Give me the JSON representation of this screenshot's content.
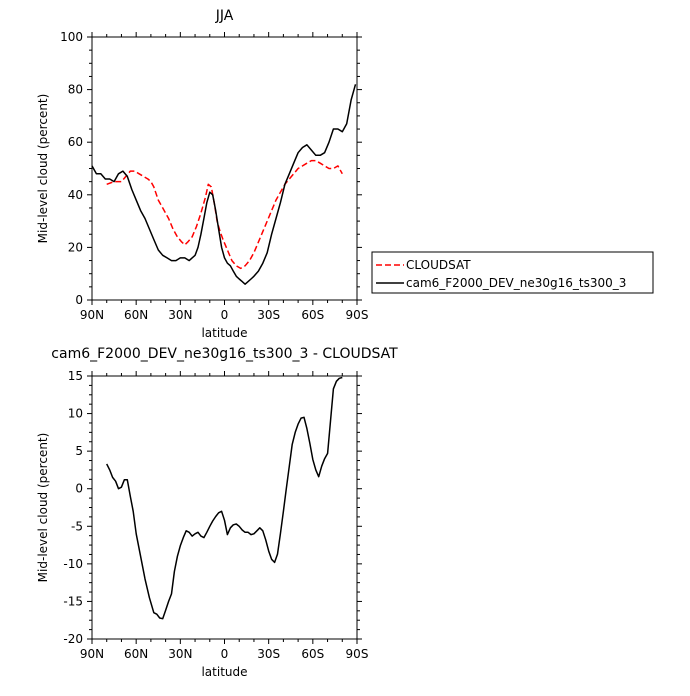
{
  "chart_data": [
    {
      "type": "line",
      "title": "JJA",
      "xlabel": "latitude",
      "ylabel": "Mid-level cloud (percent)",
      "xlim": [
        90,
        -90
      ],
      "ylim": [
        0,
        100
      ],
      "x_ticks": [
        90,
        60,
        30,
        0,
        -30,
        -60,
        -90
      ],
      "x_tick_labels": [
        "90N",
        "60N",
        "30N",
        "0",
        "30S",
        "60S",
        "90S"
      ],
      "y_ticks": [
        0,
        20,
        40,
        60,
        80,
        100
      ],
      "y_tick_labels": [
        "0",
        "20",
        "40",
        "60",
        "80",
        "100"
      ],
      "legend_position": "right",
      "series": [
        {
          "name": "CLOUDSAT",
          "color": "#ff0000",
          "dash": "dashed",
          "x": [
            80,
            75,
            70,
            67,
            64,
            61,
            58,
            55,
            52,
            50,
            48,
            45,
            42,
            38,
            35,
            32,
            29,
            27,
            25,
            22,
            19,
            16,
            13,
            11,
            9,
            7,
            5,
            3,
            1,
            -2,
            -5,
            -8,
            -11,
            -14,
            -17,
            -20,
            -23,
            -26,
            -29,
            -32,
            -35,
            -38,
            -41,
            -44,
            -47,
            -50,
            -53,
            -56,
            -59,
            -62,
            -65,
            -68,
            -71,
            -74,
            -77,
            -80
          ],
          "y": [
            44,
            45,
            45,
            47,
            49,
            49,
            48,
            47,
            46,
            45,
            43,
            38,
            35,
            31,
            27,
            24,
            22,
            21,
            22,
            24,
            28,
            33,
            39,
            44,
            43,
            37,
            30,
            26,
            23,
            19,
            15,
            13,
            12,
            13,
            15,
            18,
            22,
            26,
            30,
            34,
            38,
            41,
            44,
            46,
            48,
            50,
            51,
            52,
            53,
            53,
            52,
            51,
            50,
            50,
            51,
            48
          ]
        },
        {
          "name": "cam6_F2000_DEV_ne30g16_ts300_3",
          "color": "#000000",
          "dash": "solid",
          "x": [
            90,
            87,
            84,
            81,
            78,
            75,
            72,
            69,
            66,
            63,
            60,
            57,
            54,
            51,
            48,
            45,
            42,
            39,
            36,
            33,
            30,
            27,
            24,
            22,
            20,
            18,
            16,
            14,
            12,
            10,
            8,
            6,
            4,
            2,
            0,
            -2,
            -4,
            -6,
            -8,
            -10,
            -12,
            -14,
            -16,
            -18,
            -20,
            -23,
            -26,
            -29,
            -32,
            -35,
            -38,
            -41,
            -44,
            -47,
            -50,
            -53,
            -56,
            -59,
            -62,
            -65,
            -68,
            -71,
            -74,
            -77,
            -80,
            -83,
            -86,
            -89
          ],
          "y": [
            51,
            48,
            48,
            46,
            46,
            45,
            48,
            49,
            47,
            42,
            38,
            34,
            31,
            27,
            23,
            19,
            17,
            16,
            15,
            15,
            16,
            16,
            15,
            16,
            17,
            20,
            25,
            31,
            37,
            41,
            40,
            34,
            27,
            20,
            16,
            14,
            13,
            11,
            9,
            8,
            7,
            6,
            7,
            8,
            9,
            11,
            14,
            18,
            25,
            31,
            37,
            44,
            48,
            52,
            56,
            58,
            59,
            57,
            55,
            55,
            56,
            60,
            65,
            65,
            64,
            67,
            76,
            82
          ]
        }
      ]
    },
    {
      "type": "line",
      "title": "cam6_F2000_DEV_ne30g16_ts300_3 - CLOUDSAT",
      "xlabel": "latitude",
      "ylabel": "Mid-level cloud (percent)",
      "xlim": [
        90,
        -90
      ],
      "ylim": [
        -20,
        15
      ],
      "x_ticks": [
        90,
        60,
        30,
        0,
        -30,
        -60,
        -90
      ],
      "x_tick_labels": [
        "90N",
        "60N",
        "30N",
        "0",
        "30S",
        "60S",
        "90S"
      ],
      "y_ticks": [
        -20,
        -15,
        -10,
        -5,
        0,
        5,
        10,
        15
      ],
      "y_tick_labels": [
        "-20",
        "-15",
        "-10",
        "-5",
        "0",
        "5",
        "10",
        "15"
      ],
      "series": [
        {
          "color": "#000000",
          "dash": "solid",
          "x": [
            80,
            78,
            76,
            74,
            72,
            70,
            68,
            66,
            64,
            62,
            60,
            57,
            54,
            51,
            48,
            46,
            44,
            42,
            40,
            38,
            36,
            34,
            32,
            30,
            28,
            26,
            24,
            22,
            20,
            18,
            16,
            14,
            12,
            10,
            8,
            6,
            4,
            2,
            0,
            -2,
            -4,
            -6,
            -8,
            -10,
            -12,
            -14,
            -16,
            -18,
            -20,
            -22,
            -24,
            -26,
            -28,
            -30,
            -32,
            -34,
            -36,
            -38,
            -40,
            -42,
            -44,
            -46,
            -48,
            -50,
            -52,
            -54,
            -56,
            -58,
            -60,
            -62,
            -64,
            -66,
            -68,
            -70,
            -72,
            -74,
            -76,
            -78,
            -80
          ],
          "y": [
            3.3,
            2.5,
            1.5,
            1,
            0,
            0.2,
            1.2,
            1.2,
            -1,
            -3,
            -6,
            -9,
            -12,
            -14.5,
            -16.5,
            -16.7,
            -17.2,
            -17.3,
            -16.2,
            -15,
            -14,
            -11,
            -9,
            -7.6,
            -6.5,
            -5.6,
            -5.8,
            -6.3,
            -6,
            -5.8,
            -6.3,
            -6.5,
            -5.8,
            -5,
            -4.3,
            -3.7,
            -3.2,
            -3,
            -4.2,
            -6.1,
            -5.2,
            -4.8,
            -4.7,
            -5,
            -5.5,
            -5.8,
            -5.8,
            -6.1,
            -6,
            -5.6,
            -5.2,
            -5.6,
            -6.8,
            -8.3,
            -9.4,
            -9.8,
            -8.7,
            -6,
            -3,
            0,
            3,
            5.9,
            7.5,
            8.6,
            9.4,
            9.5,
            8,
            6,
            3.9,
            2.5,
            1.6,
            3,
            4,
            4.7,
            9,
            13.3,
            14.3,
            14.7,
            14.8
          ]
        }
      ]
    }
  ]
}
